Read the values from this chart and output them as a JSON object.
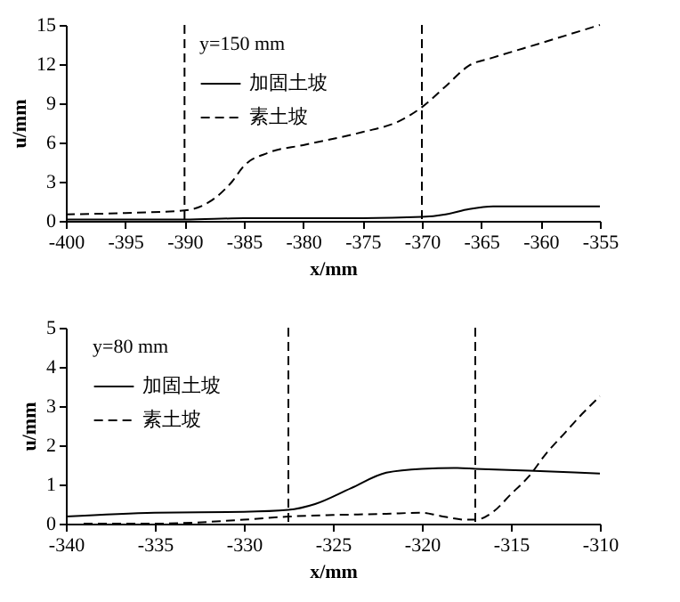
{
  "chart_data": [
    {
      "type": "line",
      "xlabel": "x/mm",
      "ylabel": "u/mm",
      "legend_title": "y=150 mm",
      "legend": "top left",
      "xlim": [
        -400,
        -355
      ],
      "xticks": [
        -400,
        -395,
        -390,
        -385,
        -380,
        -375,
        -370,
        -365,
        -360,
        -355
      ],
      "ylim": [
        0,
        15
      ],
      "yticks": [
        0,
        3,
        6,
        9,
        12,
        15
      ],
      "grid": false,
      "marker": "none",
      "series": [
        {
          "name": "加固土坡",
          "color": "#000000",
          "line_style": "solid",
          "x": [
            -400,
            -395,
            -390,
            -385,
            -380,
            -375,
            -370,
            -368,
            -366,
            -364,
            -360,
            -355
          ],
          "values": [
            0.1,
            0.1,
            0.1,
            0.2,
            0.2,
            0.2,
            0.3,
            0.5,
            0.9,
            1.1,
            1.1,
            1.1
          ]
        },
        {
          "name": "素土坡",
          "color": "#000000",
          "line_style": "dashed",
          "x": [
            -400,
            -395,
            -390,
            -388,
            -386,
            -385,
            -383,
            -380,
            -375,
            -372,
            -370,
            -368,
            -366,
            -364,
            -360,
            -355
          ],
          "values": [
            0.5,
            0.6,
            0.8,
            1.4,
            3.0,
            4.2,
            5.2,
            5.8,
            6.8,
            7.6,
            8.7,
            10.3,
            11.9,
            12.5,
            13.6,
            15.0
          ]
        }
      ],
      "ref_lines": [
        {
          "axis": "x",
          "value": -390,
          "color": "#000000",
          "line_style": "dashed"
        },
        {
          "axis": "x",
          "value": -370,
          "color": "#000000",
          "line_style": "dashed"
        }
      ]
    },
    {
      "type": "line",
      "xlabel": "x/mm",
      "ylabel": "u/mm",
      "legend_title": "y=80 mm",
      "legend": "top left",
      "xlim": [
        -340,
        -310
      ],
      "xticks": [
        -340,
        -335,
        -330,
        -325,
        -320,
        -315,
        -310
      ],
      "ylim": [
        0,
        5
      ],
      "yticks": [
        0,
        1,
        2,
        3,
        4,
        5
      ],
      "grid": false,
      "marker": "none",
      "series": [
        {
          "name": "加固土坡",
          "color": "#000000",
          "line_style": "solid",
          "x": [
            -340,
            -335,
            -330,
            -327.5,
            -326,
            -324,
            -322,
            -320,
            -318,
            -317,
            -314,
            -310
          ],
          "values": [
            0.18,
            0.28,
            0.3,
            0.35,
            0.5,
            0.9,
            1.3,
            1.4,
            1.42,
            1.4,
            1.35,
            1.28
          ]
        },
        {
          "name": "素土坡",
          "color": "#000000",
          "line_style": "dashed",
          "x": [
            -339,
            -335,
            -330,
            -327.5,
            -325,
            -322,
            -320,
            -319,
            -317.5,
            -317,
            -316,
            -315,
            -314,
            -313,
            -312,
            -311,
            -310
          ],
          "values": [
            0,
            0,
            0.1,
            0.18,
            0.22,
            0.25,
            0.28,
            0.2,
            0.1,
            0.1,
            0.3,
            0.75,
            1.2,
            1.8,
            2.3,
            2.8,
            3.25
          ]
        }
      ],
      "ref_lines": [
        {
          "axis": "x",
          "value": -327.5,
          "color": "#000000",
          "line_style": "dashed"
        },
        {
          "axis": "x",
          "value": -317,
          "color": "#000000",
          "line_style": "dashed"
        }
      ]
    }
  ]
}
